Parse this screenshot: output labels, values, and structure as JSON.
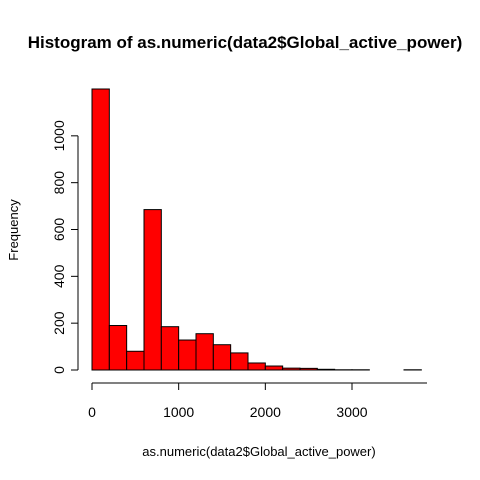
{
  "chart_data": {
    "type": "bar",
    "title": "Histogram of as.numeric(data2$Global_active_power)",
    "xlabel": "as.numeric(data2$Global_active_power)",
    "ylabel": "Frequency",
    "bar_color": "#ff0000",
    "border_color": "#000000",
    "bins": [
      {
        "x0": 0,
        "x1": 200,
        "count": 1200
      },
      {
        "x0": 200,
        "x1": 400,
        "count": 190
      },
      {
        "x0": 400,
        "x1": 600,
        "count": 80
      },
      {
        "x0": 600,
        "x1": 800,
        "count": 685
      },
      {
        "x0": 800,
        "x1": 1000,
        "count": 185
      },
      {
        "x0": 1000,
        "x1": 1200,
        "count": 128
      },
      {
        "x0": 1200,
        "x1": 1400,
        "count": 155
      },
      {
        "x0": 1400,
        "x1": 1600,
        "count": 108
      },
      {
        "x0": 1600,
        "x1": 1800,
        "count": 73
      },
      {
        "x0": 1800,
        "x1": 2000,
        "count": 30
      },
      {
        "x0": 2000,
        "x1": 2200,
        "count": 17
      },
      {
        "x0": 2200,
        "x1": 2400,
        "count": 8
      },
      {
        "x0": 2400,
        "x1": 2600,
        "count": 7
      },
      {
        "x0": 2600,
        "x1": 2800,
        "count": 3
      },
      {
        "x0": 2800,
        "x1": 3000,
        "count": 1
      },
      {
        "x0": 3000,
        "x1": 3200,
        "count": 1
      },
      {
        "x0": 3200,
        "x1": 3400,
        "count": 0
      },
      {
        "x0": 3400,
        "x1": 3600,
        "count": 0
      },
      {
        "x0": 3600,
        "x1": 3800,
        "count": 1
      }
    ],
    "xlim": [
      0,
      3800
    ],
    "ylim": [
      0,
      1200
    ],
    "x_ticks": [
      0,
      1000,
      2000,
      3000
    ],
    "y_ticks": [
      0,
      200,
      400,
      600,
      800,
      1000
    ],
    "grid": false
  }
}
